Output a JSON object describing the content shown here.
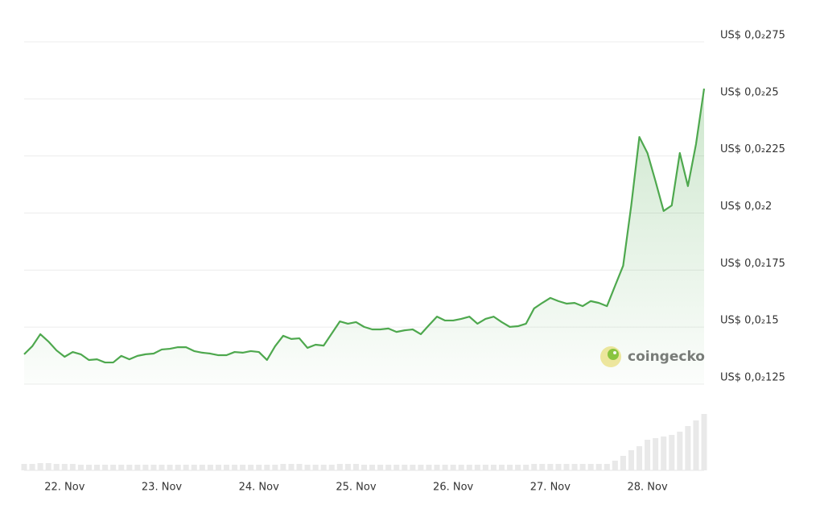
{
  "chart_data": {
    "type": "line",
    "color": "#4ea84e",
    "grid": true,
    "watermark": "coingecko",
    "categories": [
      null,
      null,
      null,
      null,
      null,
      "22. Nov",
      null,
      null,
      null,
      null,
      null,
      null,
      null,
      null,
      null,
      null,
      null,
      "23. Nov",
      null,
      null,
      null,
      null,
      null,
      null,
      null,
      null,
      null,
      null,
      null,
      "24. Nov",
      null,
      null,
      null,
      null,
      null,
      null,
      null,
      null,
      null,
      null,
      null,
      "25. Nov",
      null,
      null,
      null,
      null,
      null,
      null,
      null,
      null,
      null,
      null,
      null,
      "26. Nov",
      null,
      null,
      null,
      null,
      null,
      null,
      null,
      null,
      null,
      null,
      null,
      "27. Nov",
      null,
      null,
      null,
      null,
      null,
      null,
      null,
      null,
      null,
      null,
      null,
      "28. Nov",
      null,
      null,
      null,
      null,
      null,
      null,
      null
    ],
    "values": [
      0.001381,
      0.001416,
      0.001469,
      0.001437,
      0.001398,
      0.00137,
      0.001391,
      0.001381,
      0.001356,
      0.001359,
      0.001345,
      0.001345,
      0.001374,
      0.001359,
      0.001374,
      0.001381,
      0.001384,
      0.001402,
      0.001405,
      0.001412,
      0.001412,
      0.001395,
      0.001388,
      0.001384,
      0.001377,
      0.001377,
      0.001391,
      0.001388,
      0.001395,
      0.001391,
      0.001356,
      0.001416,
      0.001462,
      0.001448,
      0.001451,
      0.001409,
      0.001423,
      0.001419,
      0.001472,
      0.001525,
      0.001515,
      0.001522,
      0.001501,
      0.00149,
      0.00149,
      0.001494,
      0.001479,
      0.001486,
      0.00149,
      0.001469,
      0.001508,
      0.001546,
      0.001529,
      0.001529,
      0.001536,
      0.001546,
      0.001515,
      0.001536,
      0.001546,
      0.001522,
      0.001501,
      0.001504,
      0.001515,
      0.001582,
      0.001606,
      0.001628,
      0.001614,
      0.001603,
      0.001606,
      0.001592,
      0.001614,
      0.001606,
      0.001592,
      0.001681,
      0.001769,
      0.002033,
      0.002333,
      0.002263,
      0.002139,
      0.002009,
      0.002033,
      0.002263,
      0.002118,
      0.002302,
      0.002545
    ],
    "volume": [
      8,
      8,
      9,
      9,
      8,
      8,
      8,
      7,
      7,
      7,
      7,
      7,
      7,
      7,
      7,
      7,
      7,
      7,
      7,
      7,
      7,
      7,
      7,
      7,
      7,
      7,
      7,
      7,
      7,
      7,
      7,
      7,
      8,
      8,
      8,
      7,
      7,
      7,
      7,
      8,
      8,
      8,
      7,
      7,
      7,
      7,
      7,
      7,
      7,
      7,
      7,
      7,
      7,
      7,
      7,
      7,
      7,
      7,
      7,
      7,
      7,
      7,
      7,
      8,
      8,
      8,
      8,
      8,
      8,
      8,
      8,
      8,
      8,
      12,
      18,
      25,
      30,
      38,
      40,
      42,
      44,
      48,
      55,
      62,
      70
    ],
    "ylim": [
      0.00125,
      0.00275
    ],
    "yticks": [
      {
        "value": 0.00125,
        "label": "US$ 0,0₂125"
      },
      {
        "value": 0.0015,
        "label": "US$ 0,0₂15"
      },
      {
        "value": 0.00175,
        "label": "US$ 0,0₂175"
      },
      {
        "value": 0.002,
        "label": "US$ 0,0₂2"
      },
      {
        "value": 0.00225,
        "label": "US$ 0,0₂225"
      },
      {
        "value": 0.0025,
        "label": "US$ 0,0₂25"
      },
      {
        "value": 0.00275,
        "label": "US$ 0,0₂275"
      }
    ]
  }
}
